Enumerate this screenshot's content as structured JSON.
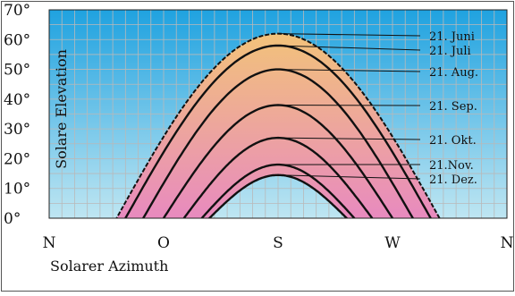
{
  "chart_data": {
    "type": "line",
    "title": "",
    "xlabel": "Solarer Azimuth",
    "ylabel": "Solare Elevation",
    "x_ticks": [
      {
        "label": "N",
        "azimuth": -180
      },
      {
        "label": "O",
        "azimuth": -90
      },
      {
        "label": "S",
        "azimuth": 0
      },
      {
        "label": "W",
        "azimuth": 90
      },
      {
        "label": "N",
        "azimuth": 180
      }
    ],
    "y_ticks": [
      "0°",
      "10°",
      "20°",
      "30°",
      "40°",
      "50°",
      "60°",
      "70°"
    ],
    "ylim": [
      0,
      70
    ],
    "xlim": [
      -180,
      180
    ],
    "grid": true,
    "series": [
      {
        "name": "21. Juni",
        "peak_elevation": 62,
        "azimuth_range": [
          -127,
          127
        ]
      },
      {
        "name": "21. Juli",
        "peak_elevation": 58,
        "azimuth_range": [
          -120,
          120
        ]
      },
      {
        "name": "21. Aug.",
        "peak_elevation": 50,
        "azimuth_range": [
          -106,
          106
        ]
      },
      {
        "name": "21. Sep.",
        "peak_elevation": 38,
        "azimuth_range": [
          -90,
          90
        ]
      },
      {
        "name": "21. Okt.",
        "peak_elevation": 27,
        "azimuth_range": [
          -74,
          74
        ]
      },
      {
        "name": "21.Nov.",
        "peak_elevation": 18,
        "azimuth_range": [
          -60,
          60
        ]
      },
      {
        "name": "21. Dez.",
        "peak_elevation": 14.5,
        "azimuth_range": [
          -54,
          54
        ]
      }
    ],
    "colors": {
      "sky_top": "#1fa2e0",
      "sky_bottom": "#bfe6f2",
      "band_top": "#f2c27a",
      "band_bottom": "#e88abf",
      "curve": "#111111",
      "grid": "#b9b9b9"
    }
  }
}
